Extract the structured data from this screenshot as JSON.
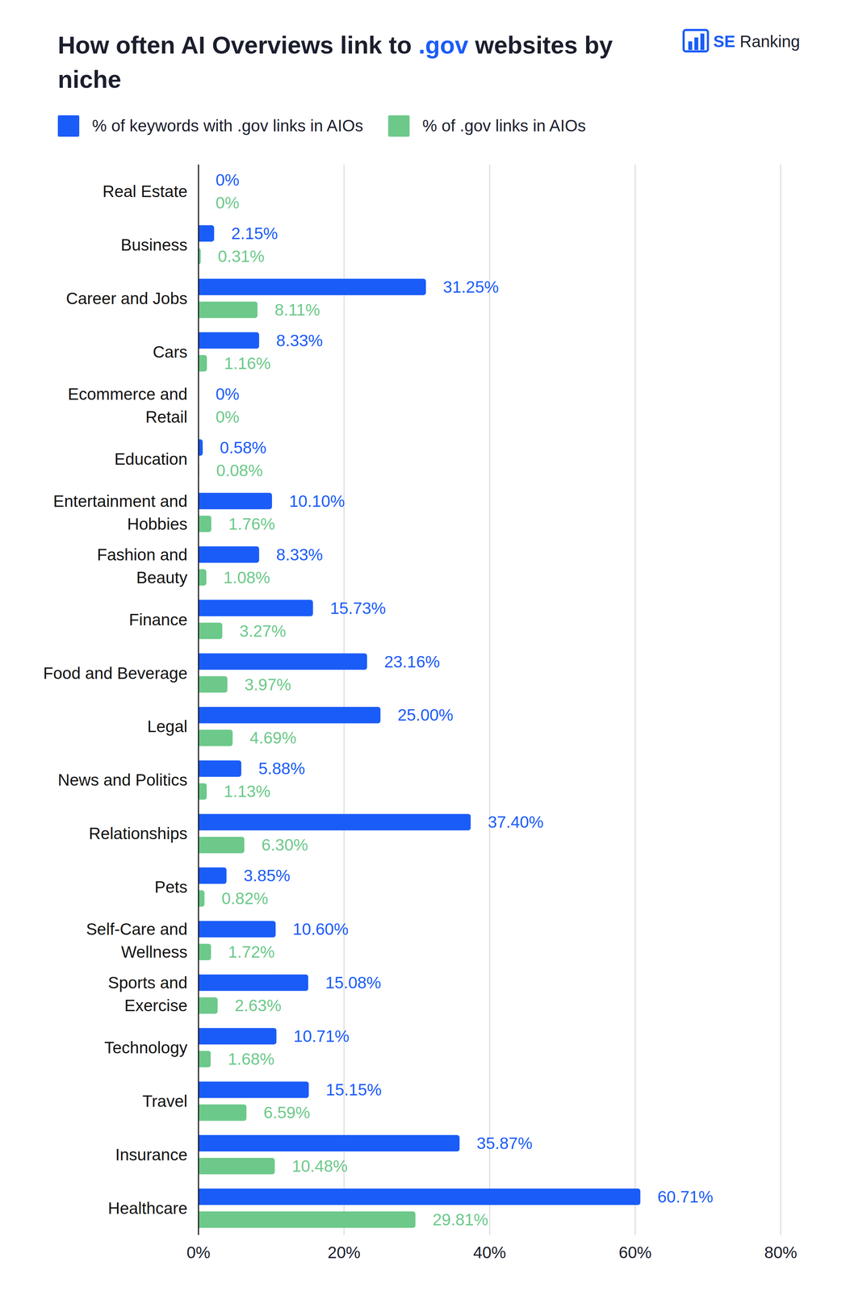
{
  "chart_data": {
    "type": "bar",
    "orientation": "horizontal",
    "title": "How often AI Overviews link to .gov websites by niche",
    "logo": "SE Ranking",
    "categories": [
      "Real Estate",
      "Business",
      "Career and Jobs",
      "Cars",
      "Ecommerce and Retail",
      "Education",
      "Entertainment and Hobbies",
      "Fashion and Beauty",
      "Finance",
      "Food and Beverage",
      "Legal",
      "News and Politics",
      "Relationships",
      "Pets",
      "Self-Care and Wellness",
      "Sports and Exercise",
      "Technology",
      "Travel",
      "Insurance",
      "Healthcare"
    ],
    "series": [
      {
        "name": "% of keywords with .gov links in AIOs",
        "color": "#1a5cf8",
        "values": [
          0,
          2.15,
          31.25,
          8.33,
          0,
          0.58,
          10.1,
          8.33,
          15.73,
          23.16,
          25,
          5.88,
          37.4,
          3.85,
          10.6,
          15.08,
          10.71,
          15.15,
          35.87,
          60.71
        ],
        "value_labels": [
          "0%",
          "2.15%",
          "31.25%",
          "8.33%",
          "0%",
          "0.58%",
          "10.10%",
          "8.33%",
          "15.73%",
          "23.16%",
          "25.00%",
          "5.88%",
          "37.40%",
          "3.85%",
          "10.60%",
          "15.08%",
          "10.71%",
          "15.15%",
          "35.87%",
          "60.71%"
        ]
      },
      {
        "name": "% of .gov links in AIOs",
        "color": "#6cc98a",
        "values": [
          0,
          0.31,
          8.11,
          1.16,
          0,
          0.08,
          1.76,
          1.08,
          3.27,
          3.97,
          4.69,
          1.13,
          6.3,
          0.82,
          1.72,
          2.63,
          1.68,
          6.59,
          10.48,
          29.81
        ],
        "value_labels": [
          "0%",
          "0.31%",
          "8.11%",
          "1.16%",
          "0%",
          "0.08%",
          "1.76%",
          "1.08%",
          "3.27%",
          "3.97%",
          "4.69%",
          "1.13%",
          "6.30%",
          "0.82%",
          "1.72%",
          "2.63%",
          "1.68%",
          "6.59%",
          "10.48%",
          "29.81%"
        ]
      }
    ],
    "xlim": [
      0,
      80
    ],
    "xticks": [
      {
        "value": 0,
        "label": "0%"
      },
      {
        "value": 20,
        "label": "20%"
      },
      {
        "value": 40,
        "label": "40%"
      },
      {
        "value": 60,
        "label": "60%"
      },
      {
        "value": 80,
        "label": "80%"
      }
    ],
    "grid": true,
    "legend": "top-left",
    "data_labels": true
  }
}
